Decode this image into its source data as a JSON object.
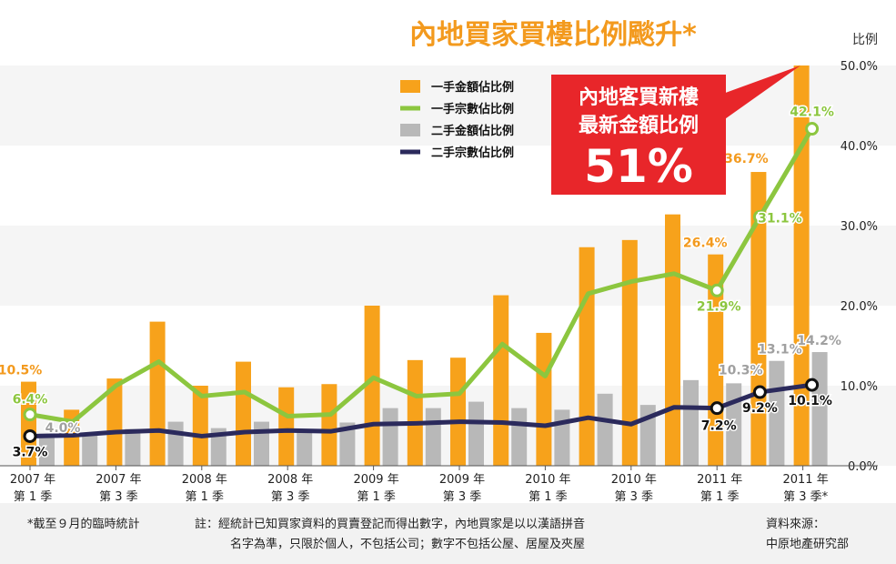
{
  "chart_data": {
    "type": "bar+line",
    "title": "內地買家買樓比例颷升*",
    "ylabel": "比例",
    "ylim": [
      0,
      50
    ],
    "yticks": [
      "0.0%",
      "10.0%",
      "20.0%",
      "30.0%",
      "40.0%",
      "50.0%"
    ],
    "categories": [
      "2007 Q1",
      "2007 Q2",
      "2007 Q3",
      "2007 Q4",
      "2008 Q1",
      "2008 Q2",
      "2008 Q3",
      "2008 Q4",
      "2009 Q1",
      "2009 Q2",
      "2009 Q3",
      "2009 Q4",
      "2010 Q1",
      "2010 Q2",
      "2010 Q3",
      "2010 Q4",
      "2011 Q1",
      "2011 Q2",
      "2011 Q3"
    ],
    "x_tick_labels": [
      {
        "index": 0,
        "line1": "2007 年",
        "line2": "第 1 季"
      },
      {
        "index": 2,
        "line1": "2007 年",
        "line2": "第 3 季"
      },
      {
        "index": 4,
        "line1": "2008 年",
        "line2": "第 1 季"
      },
      {
        "index": 6,
        "line1": "2008 年",
        "line2": "第 3 季"
      },
      {
        "index": 8,
        "line1": "2009 年",
        "line2": "第 1 季"
      },
      {
        "index": 10,
        "line1": "2009 年",
        "line2": "第 3 季"
      },
      {
        "index": 12,
        "line1": "2010 年",
        "line2": "第 1 季"
      },
      {
        "index": 14,
        "line1": "2010 年",
        "line2": "第 3 季"
      },
      {
        "index": 16,
        "line1": "2011 年",
        "line2": "第 1 季"
      },
      {
        "index": 18,
        "line1": "2011 年",
        "line2": "第 3 季*"
      }
    ],
    "series": [
      {
        "name": "一手金額佔比例",
        "kind": "bar",
        "color": "#f7a21b",
        "values": [
          10.5,
          7.0,
          10.9,
          18.0,
          10.0,
          13.0,
          9.8,
          10.2,
          20.0,
          13.2,
          13.5,
          21.3,
          16.6,
          27.3,
          28.2,
          31.4,
          26.4,
          36.7,
          51.0
        ]
      },
      {
        "name": "一手宗數佔比例",
        "kind": "line",
        "color": "#8cc63f",
        "values": [
          6.4,
          5.5,
          10.0,
          13.0,
          8.7,
          9.2,
          6.2,
          6.4,
          11.0,
          8.7,
          9.0,
          15.2,
          11.2,
          21.5,
          23.0,
          24.0,
          21.9,
          31.1,
          42.1
        ]
      },
      {
        "name": "二手金額佔比例",
        "kind": "bar",
        "color": "#b8b8b8",
        "values": [
          4.0,
          4.1,
          4.6,
          5.5,
          4.7,
          5.5,
          4.6,
          5.4,
          7.2,
          7.2,
          8.0,
          7.2,
          7.0,
          9.0,
          7.6,
          10.7,
          10.3,
          13.1,
          14.2
        ]
      },
      {
        "name": "二手宗數佔比例",
        "kind": "line",
        "color": "#2b2a5c",
        "values": [
          3.7,
          3.8,
          4.2,
          4.4,
          3.7,
          4.2,
          4.4,
          4.3,
          5.2,
          5.3,
          5.5,
          5.4,
          5.0,
          6.0,
          5.2,
          7.3,
          7.2,
          9.2,
          10.1
        ]
      }
    ],
    "data_labels": [
      {
        "series": 0,
        "index": 0,
        "text": "10.5%"
      },
      {
        "series": 0,
        "index": 16,
        "text": "26.4%"
      },
      {
        "series": 0,
        "index": 17,
        "text": "36.7%"
      },
      {
        "series": 1,
        "index": 0,
        "text": "6.4%"
      },
      {
        "series": 1,
        "index": 16,
        "text": "21.9%"
      },
      {
        "series": 1,
        "index": 17,
        "text": "31.1%"
      },
      {
        "series": 1,
        "index": 18,
        "text": "42.1%"
      },
      {
        "series": 2,
        "index": 0,
        "text": "4.0%"
      },
      {
        "series": 2,
        "index": 16,
        "text": "10.3%"
      },
      {
        "series": 2,
        "index": 17,
        "text": "13.1%"
      },
      {
        "series": 2,
        "index": 18,
        "text": "14.2%"
      },
      {
        "series": 3,
        "index": 0,
        "text": "3.7%"
      },
      {
        "series": 3,
        "index": 16,
        "text": "7.2%"
      },
      {
        "series": 3,
        "index": 17,
        "text": "9.2%"
      },
      {
        "series": 3,
        "index": 18,
        "text": "10.1%"
      }
    ],
    "legend_position": "top-left",
    "grid": false
  },
  "callout": {
    "line1": "內地客買新樓",
    "line2": "最新金額比例",
    "value": "51%",
    "color": "#e8262a"
  },
  "footer": {
    "note_left": "*截至９月的臨時統計",
    "note_main_1": "註：經統計已知買家資料的買賣登記而得出數字，內地買家是以以漢語拼音",
    "note_main_2": "名字為準，只限於個人，不包括公司；數字不包括公屋、居屋及夾屋",
    "source_1": "資料來源：",
    "source_2": "中原地產研究部"
  }
}
